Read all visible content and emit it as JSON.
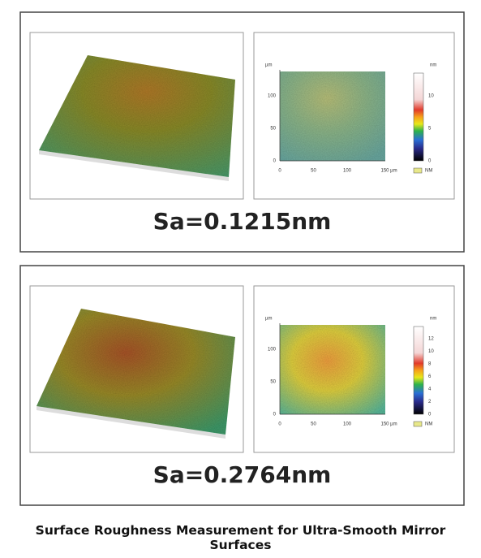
{
  "panels": [
    {
      "sa": "Sa=0.1215nm",
      "map": {
        "y_unit": "µm",
        "y_ticks": [
          "100",
          "50",
          "0"
        ],
        "x_ticks": [
          "0",
          "50",
          "100",
          "150 µm"
        ],
        "bar_unit": "nm",
        "bar_ticks": [
          "10",
          "5",
          "0"
        ],
        "legend": "NM"
      }
    },
    {
      "sa": "Sa=0.2764nm",
      "map": {
        "y_unit": "µm",
        "y_ticks": [
          "100",
          "50",
          "0"
        ],
        "x_ticks": [
          "0",
          "50",
          "100",
          "150 µm"
        ],
        "bar_unit": "nm",
        "bar_ticks": [
          "12",
          "10",
          "8",
          "6",
          "4",
          "2",
          "0"
        ],
        "legend": "NM"
      }
    }
  ],
  "caption": "Surface Roughness Measurement for Ultra-Smooth Mirror Surfaces"
}
